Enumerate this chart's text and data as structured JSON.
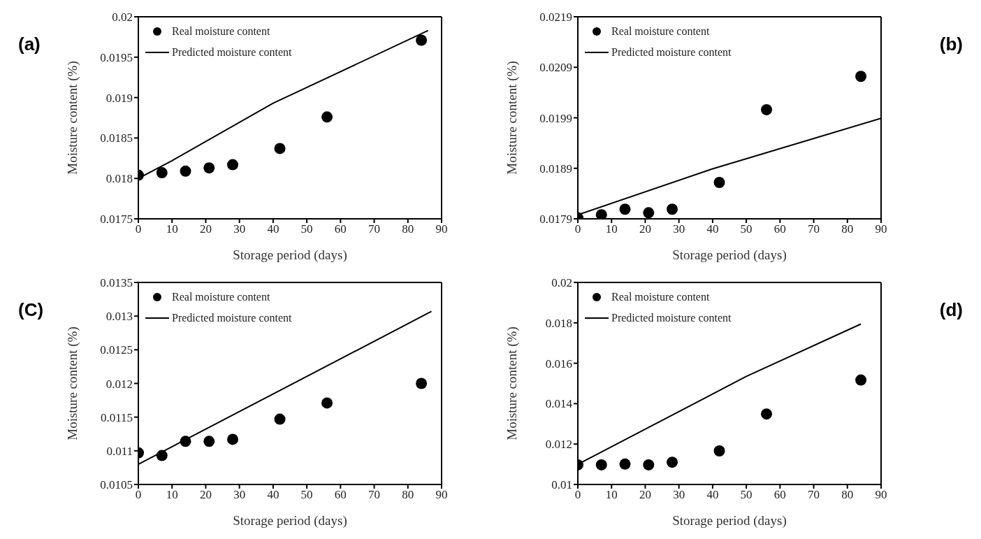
{
  "chart_data": [
    {
      "type": "scatter",
      "annotations": [
        "(a)"
      ],
      "xlabel": "Storage period (days)",
      "ylabel": "Moisture content (%)",
      "xlim": [
        0,
        90
      ],
      "xticks": [
        0,
        10,
        20,
        30,
        40,
        50,
        60,
        70,
        80,
        90
      ],
      "ylim": [
        0.0175,
        0.02
      ],
      "yticks": [
        0.0175,
        0.018,
        0.0185,
        0.019,
        0.0195,
        0.02
      ],
      "legend": "top left",
      "series": [
        {
          "name": "Real moisture content",
          "marker": "circle",
          "color": "#000000",
          "x": [
            0,
            7,
            14,
            21,
            28,
            42,
            56,
            84
          ],
          "values": [
            0.01804,
            0.01807,
            0.01809,
            0.01813,
            0.01817,
            0.01837,
            0.01876,
            0.01971
          ]
        },
        {
          "name": "Predicted moisture content",
          "type": "line",
          "marker": "none",
          "line_style": "solid",
          "color": "#000000",
          "x": [
            0,
            10,
            40,
            86
          ],
          "values": [
            0.018,
            0.01822,
            0.01893,
            0.01983
          ]
        }
      ]
    },
    {
      "type": "scatter",
      "annotations": [
        "(b)"
      ],
      "xlabel": "Storage period (days)",
      "ylabel": "Moisture content (%)",
      "xlim": [
        0,
        90
      ],
      "xticks": [
        0,
        10,
        20,
        30,
        40,
        50,
        60,
        70,
        80,
        90
      ],
      "ylim": [
        0.0179,
        0.0219
      ],
      "yticks": [
        0.0179,
        0.0189,
        0.0199,
        0.0209,
        0.0219
      ],
      "legend": "top left",
      "series": [
        {
          "name": "Real moisture content",
          "marker": "circle",
          "color": "#000000",
          "x": [
            0,
            7,
            14,
            21,
            28,
            42,
            56,
            84
          ],
          "values": [
            0.01792,
            0.01798,
            0.01809,
            0.01802,
            0.01809,
            0.01862,
            0.02006,
            0.02072
          ]
        },
        {
          "name": "Predicted moisture content",
          "type": "line",
          "marker": "none",
          "line_style": "solid",
          "color": "#000000",
          "x": [
            0,
            40,
            90
          ],
          "values": [
            0.01798,
            0.01889,
            0.01989
          ]
        }
      ]
    },
    {
      "type": "scatter",
      "annotations": [
        "(C)"
      ],
      "xlabel": "Storage period (days)",
      "ylabel": "Moisture content (%)",
      "xlim": [
        0,
        90
      ],
      "xticks": [
        0,
        10,
        20,
        30,
        40,
        50,
        60,
        70,
        80,
        90
      ],
      "ylim": [
        0.0105,
        0.0135
      ],
      "yticks": [
        0.0105,
        0.011,
        0.0115,
        0.012,
        0.0125,
        0.013,
        0.0135
      ],
      "legend": "top left",
      "series": [
        {
          "name": "Real moisture content",
          "marker": "circle",
          "color": "#000000",
          "x": [
            0,
            7,
            14,
            21,
            28,
            42,
            56,
            84
          ],
          "values": [
            0.01097,
            0.01093,
            0.01114,
            0.01114,
            0.01117,
            0.01147,
            0.01171,
            0.012
          ]
        },
        {
          "name": "Predicted moisture content",
          "type": "line",
          "marker": "none",
          "line_style": "solid",
          "color": "#000000",
          "x": [
            0,
            87
          ],
          "values": [
            0.0108,
            0.01307
          ]
        }
      ]
    },
    {
      "type": "scatter",
      "annotations": [
        "(d)"
      ],
      "xlabel": "Storage period (days)",
      "ylabel": "Moisture content (%)",
      "xlim": [
        0,
        90
      ],
      "xticks": [
        0,
        10,
        20,
        30,
        40,
        50,
        60,
        70,
        80,
        90
      ],
      "ylim": [
        0.01,
        0.02
      ],
      "yticks": [
        0.01,
        0.012,
        0.014,
        0.016,
        0.018,
        0.02
      ],
      "legend": "top left",
      "series": [
        {
          "name": "Real moisture content",
          "marker": "circle",
          "color": "#000000",
          "x": [
            0,
            7,
            14,
            21,
            28,
            42,
            56,
            84
          ],
          "values": [
            0.01097,
            0.01097,
            0.01101,
            0.01097,
            0.0111,
            0.01166,
            0.01349,
            0.01517
          ]
        },
        {
          "name": "Predicted moisture content",
          "type": "line",
          "marker": "none",
          "line_style": "solid",
          "color": "#000000",
          "x": [
            0,
            50,
            84
          ],
          "values": [
            0.011,
            0.01535,
            0.01794
          ]
        }
      ]
    }
  ]
}
